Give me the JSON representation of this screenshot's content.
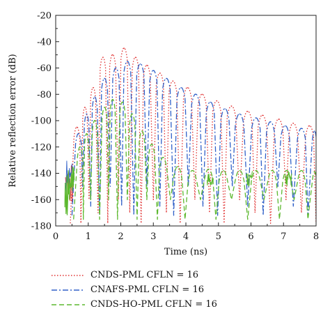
{
  "chart_data": {
    "type": "line",
    "title": "",
    "xlabel": "Time (ns)",
    "ylabel": "Relative reflection error (dB)",
    "xlim": [
      0,
      8
    ],
    "ylim": [
      -180,
      -20
    ],
    "x_ticks": [
      "0",
      "1",
      "2",
      "3",
      "4",
      "5",
      "6",
      "7",
      "8"
    ],
    "y_ticks": [
      "-20",
      "-40",
      "-60",
      "-80",
      "-100",
      "-120",
      "-140",
      "-160",
      "-180"
    ],
    "grid": false,
    "legend_position": "below",
    "series": [
      {
        "name": "CNDS-PML CFLN = 16",
        "color": "#e03030",
        "dash": "dotted",
        "peaks": [
          {
            "t": 0.65,
            "v": -105
          },
          {
            "t": 0.9,
            "v": -90
          },
          {
            "t": 1.15,
            "v": -75
          },
          {
            "t": 1.45,
            "v": -52
          },
          {
            "t": 1.75,
            "v": -50
          },
          {
            "t": 2.1,
            "v": -45
          },
          {
            "t": 2.45,
            "v": -52
          },
          {
            "t": 2.8,
            "v": -58
          },
          {
            "t": 3.2,
            "v": -64
          },
          {
            "t": 3.6,
            "v": -70
          },
          {
            "t": 4.05,
            "v": -75
          },
          {
            "t": 4.5,
            "v": -80
          },
          {
            "t": 4.95,
            "v": -85
          },
          {
            "t": 5.4,
            "v": -89
          },
          {
            "t": 5.9,
            "v": -93
          },
          {
            "t": 6.35,
            "v": -96
          },
          {
            "t": 6.85,
            "v": -99
          },
          {
            "t": 7.3,
            "v": -102
          },
          {
            "t": 7.8,
            "v": -104
          }
        ]
      },
      {
        "name": "CNAFS-PML CFLN = 16",
        "color": "#3060c8",
        "dash": "dash-dot",
        "peaks": [
          {
            "t": 0.7,
            "v": -110
          },
          {
            "t": 0.95,
            "v": -95
          },
          {
            "t": 1.2,
            "v": -82
          },
          {
            "t": 1.5,
            "v": -68
          },
          {
            "t": 1.85,
            "v": -60
          },
          {
            "t": 2.2,
            "v": -55
          },
          {
            "t": 2.6,
            "v": -57
          },
          {
            "t": 3.0,
            "v": -62
          },
          {
            "t": 3.4,
            "v": -68
          },
          {
            "t": 3.85,
            "v": -75
          },
          {
            "t": 4.3,
            "v": -80
          },
          {
            "t": 4.75,
            "v": -86
          },
          {
            "t": 5.2,
            "v": -91
          },
          {
            "t": 5.65,
            "v": -95
          },
          {
            "t": 6.15,
            "v": -98
          },
          {
            "t": 6.6,
            "v": -101
          },
          {
            "t": 7.05,
            "v": -104
          },
          {
            "t": 7.55,
            "v": -106
          },
          {
            "t": 7.95,
            "v": -108
          }
        ]
      },
      {
        "name": "CNDS-HO-PML CFLN = 16",
        "color": "#5cb82e",
        "dash": "dashed",
        "peaks": [
          {
            "t": 0.75,
            "v": -120
          },
          {
            "t": 0.95,
            "v": -110
          },
          {
            "t": 1.2,
            "v": -100
          },
          {
            "t": 1.5,
            "v": -90
          },
          {
            "t": 1.75,
            "v": -84
          },
          {
            "t": 2.05,
            "v": -86
          },
          {
            "t": 2.35,
            "v": -95
          },
          {
            "t": 2.65,
            "v": -108
          },
          {
            "t": 2.95,
            "v": -118
          },
          {
            "t": 3.3,
            "v": -128
          },
          {
            "t": 3.75,
            "v": -135
          },
          {
            "t": 4.2,
            "v": -138
          },
          {
            "t": 4.7,
            "v": -137
          },
          {
            "t": 5.15,
            "v": -138
          },
          {
            "t": 5.65,
            "v": -138
          },
          {
            "t": 6.15,
            "v": -138
          },
          {
            "t": 6.65,
            "v": -138
          },
          {
            "t": 7.1,
            "v": -138
          },
          {
            "t": 7.55,
            "v": -138
          },
          {
            "t": 7.95,
            "v": -139
          }
        ]
      }
    ]
  }
}
